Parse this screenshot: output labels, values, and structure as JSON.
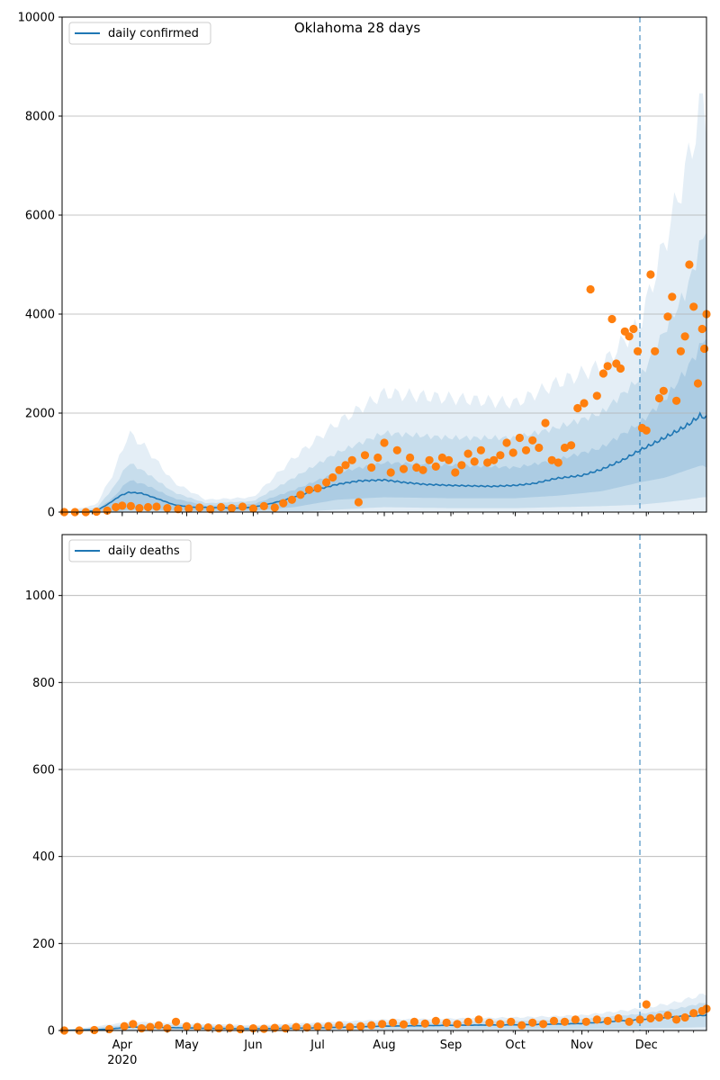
{
  "figure": {
    "title": "Oklahoma 28 days"
  },
  "colors": {
    "model": "#1f77b4",
    "observed": "#ff7f0e",
    "band": "#1f77b4",
    "grid": "#b0b0b0"
  },
  "chart_data": [
    {
      "type": "line",
      "panel": "top",
      "legend": [
        "daily confirmed"
      ],
      "legend_placement": "upper-left",
      "xlim": [
        "2020-03-04",
        "2020-12-29"
      ],
      "ylim": [
        0,
        10000
      ],
      "yticks": [
        0,
        2000,
        4000,
        6000,
        8000,
        10000
      ],
      "grid": "y",
      "forecast_start": "2020-11-28",
      "median": {
        "name": "daily confirmed",
        "x": [
          "2020-03-04",
          "2020-03-12",
          "2020-03-20",
          "2020-03-25",
          "2020-03-31",
          "2020-04-04",
          "2020-04-10",
          "2020-04-18",
          "2020-04-25",
          "2020-05-03",
          "2020-05-15",
          "2020-05-25",
          "2020-06-01",
          "2020-06-10",
          "2020-06-20",
          "2020-07-01",
          "2020-07-10",
          "2020-07-20",
          "2020-08-01",
          "2020-08-10",
          "2020-08-20",
          "2020-09-01",
          "2020-09-10",
          "2020-09-20",
          "2020-10-01",
          "2020-10-10",
          "2020-10-20",
          "2020-11-01",
          "2020-11-10",
          "2020-11-20",
          "2020-11-28",
          "2020-12-05",
          "2020-12-12",
          "2020-12-20",
          "2020-12-26",
          "2020-12-29"
        ],
        "y": [
          0,
          0,
          30,
          150,
          330,
          400,
          380,
          260,
          150,
          100,
          90,
          80,
          100,
          180,
          300,
          460,
          560,
          630,
          650,
          600,
          560,
          540,
          530,
          520,
          540,
          580,
          680,
          740,
          860,
          1050,
          1250,
          1400,
          1560,
          1750,
          1950,
          1900
        ]
      },
      "bands": [
        {
          "level": "outer",
          "x": [
            "2020-03-04",
            "2020-03-20",
            "2020-03-28",
            "2020-04-04",
            "2020-04-12",
            "2020-04-25",
            "2020-05-10",
            "2020-06-01",
            "2020-06-20",
            "2020-07-10",
            "2020-08-01",
            "2020-09-01",
            "2020-10-01",
            "2020-10-20",
            "2020-11-10",
            "2020-11-28",
            "2020-12-10",
            "2020-12-20",
            "2020-12-27",
            "2020-12-29"
          ],
          "lower": [
            0,
            0,
            0,
            0,
            0,
            0,
            0,
            0,
            0,
            0,
            0,
            0,
            0,
            0,
            0,
            0,
            0,
            0,
            0,
            0
          ],
          "upper": [
            0,
            150,
            800,
            1600,
            1300,
            600,
            250,
            300,
            1100,
            1800,
            2400,
            2300,
            2200,
            2600,
            2950,
            3800,
            5500,
            7000,
            8300,
            8000
          ]
        },
        {
          "level": "middle",
          "x": [
            "2020-03-04",
            "2020-03-20",
            "2020-03-28",
            "2020-04-04",
            "2020-04-12",
            "2020-04-25",
            "2020-05-10",
            "2020-06-01",
            "2020-06-20",
            "2020-07-10",
            "2020-08-01",
            "2020-09-01",
            "2020-10-01",
            "2020-10-20",
            "2020-11-10",
            "2020-11-28",
            "2020-12-10",
            "2020-12-20",
            "2020-12-27",
            "2020-12-29"
          ],
          "lower": [
            0,
            0,
            0,
            0,
            0,
            0,
            0,
            0,
            0,
            50,
            100,
            80,
            80,
            100,
            120,
            150,
            200,
            250,
            300,
            300
          ],
          "upper": [
            0,
            80,
            500,
            1000,
            800,
            400,
            180,
            220,
            700,
            1200,
            1600,
            1500,
            1500,
            1700,
            2000,
            2700,
            3700,
            4500,
            5500,
            5800
          ]
        },
        {
          "level": "inner",
          "x": [
            "2020-03-04",
            "2020-03-20",
            "2020-03-28",
            "2020-04-04",
            "2020-04-12",
            "2020-04-25",
            "2020-05-10",
            "2020-06-01",
            "2020-06-20",
            "2020-07-10",
            "2020-08-01",
            "2020-09-01",
            "2020-10-01",
            "2020-10-20",
            "2020-11-10",
            "2020-11-28",
            "2020-12-10",
            "2020-12-20",
            "2020-12-27",
            "2020-12-29"
          ],
          "lower": [
            0,
            0,
            0,
            50,
            60,
            30,
            20,
            30,
            100,
            250,
            300,
            280,
            280,
            330,
            420,
            600,
            700,
            850,
            950,
            900
          ],
          "upper": [
            0,
            40,
            300,
            650,
            550,
            280,
            130,
            160,
            450,
            800,
            1000,
            950,
            900,
            1050,
            1300,
            1800,
            2300,
            2900,
            3400,
            3600
          ]
        }
      ],
      "observed": {
        "x": [
          "2020-03-05",
          "2020-03-10",
          "2020-03-15",
          "2020-03-20",
          "2020-03-25",
          "2020-03-29",
          "2020-04-01",
          "2020-04-05",
          "2020-04-09",
          "2020-04-13",
          "2020-04-17",
          "2020-04-22",
          "2020-04-27",
          "2020-05-02",
          "2020-05-07",
          "2020-05-12",
          "2020-05-17",
          "2020-05-22",
          "2020-05-27",
          "2020-06-01",
          "2020-06-06",
          "2020-06-11",
          "2020-06-15",
          "2020-06-19",
          "2020-06-23",
          "2020-06-27",
          "2020-07-01",
          "2020-07-05",
          "2020-07-08",
          "2020-07-11",
          "2020-07-14",
          "2020-07-17",
          "2020-07-20",
          "2020-07-23",
          "2020-07-26",
          "2020-07-29",
          "2020-08-01",
          "2020-08-04",
          "2020-08-07",
          "2020-08-10",
          "2020-08-13",
          "2020-08-16",
          "2020-08-19",
          "2020-08-22",
          "2020-08-25",
          "2020-08-28",
          "2020-08-31",
          "2020-09-03",
          "2020-09-06",
          "2020-09-09",
          "2020-09-12",
          "2020-09-15",
          "2020-09-18",
          "2020-09-21",
          "2020-09-24",
          "2020-09-27",
          "2020-09-30",
          "2020-10-03",
          "2020-10-06",
          "2020-10-09",
          "2020-10-12",
          "2020-10-15",
          "2020-10-18",
          "2020-10-21",
          "2020-10-24",
          "2020-10-27",
          "2020-10-30",
          "2020-11-02",
          "2020-11-05",
          "2020-11-08",
          "2020-11-11",
          "2020-11-13",
          "2020-11-15",
          "2020-11-17",
          "2020-11-19",
          "2020-11-21",
          "2020-11-23",
          "2020-11-25",
          "2020-11-27",
          "2020-11-29",
          "2020-12-01",
          "2020-12-03",
          "2020-12-05",
          "2020-12-07",
          "2020-12-09",
          "2020-12-11",
          "2020-12-13",
          "2020-12-15",
          "2020-12-17",
          "2020-12-19",
          "2020-12-21",
          "2020-12-23",
          "2020-12-25",
          "2020-12-27",
          "2020-12-28",
          "2020-12-29"
        ],
        "y": [
          0,
          0,
          0,
          10,
          30,
          100,
          130,
          120,
          80,
          100,
          110,
          80,
          60,
          70,
          90,
          60,
          100,
          80,
          110,
          70,
          120,
          90,
          180,
          250,
          350,
          450,
          480,
          600,
          700,
          850,
          950,
          1050,
          200,
          1150,
          900,
          1100,
          1400,
          800,
          1250,
          870,
          1100,
          900,
          850,
          1050,
          920,
          1100,
          1050,
          800,
          950,
          1180,
          1020,
          1250,
          1000,
          1050,
          1150,
          1400,
          1200,
          1500,
          1250,
          1450,
          1300,
          1800,
          1050,
          1000,
          1300,
          1350,
          2100,
          2200,
          4500,
          2350,
          2800,
          2950,
          3900,
          3000,
          2900,
          3650,
          3550,
          3700,
          3250,
          1700,
          1650,
          4800,
          3250,
          2300,
          2450,
          3950,
          4350,
          2250,
          3250,
          3550,
          5000,
          4150,
          2600,
          3700,
          3300,
          4000
        ]
      }
    },
    {
      "type": "line",
      "panel": "bottom",
      "legend": [
        "daily deaths"
      ],
      "legend_placement": "upper-left",
      "xlim": [
        "2020-03-04",
        "2020-12-29"
      ],
      "ylim": [
        0,
        1140
      ],
      "yticks": [
        0,
        200,
        400,
        600,
        800,
        1000
      ],
      "grid": "y",
      "forecast_start": "2020-11-28",
      "xticks": [
        {
          "date": "2020-04-01",
          "label": "Apr",
          "sublabel": "2020"
        },
        {
          "date": "2020-05-01",
          "label": "May"
        },
        {
          "date": "2020-06-01",
          "label": "Jun"
        },
        {
          "date": "2020-07-01",
          "label": "Jul"
        },
        {
          "date": "2020-08-01",
          "label": "Aug"
        },
        {
          "date": "2020-09-01",
          "label": "Sep"
        },
        {
          "date": "2020-10-01",
          "label": "Oct"
        },
        {
          "date": "2020-11-01",
          "label": "Nov"
        },
        {
          "date": "2020-12-01",
          "label": "Dec"
        }
      ],
      "median": {
        "name": "daily deaths",
        "x": [
          "2020-03-04",
          "2020-03-25",
          "2020-04-05",
          "2020-04-20",
          "2020-05-10",
          "2020-06-01",
          "2020-07-01",
          "2020-08-01",
          "2020-09-01",
          "2020-10-01",
          "2020-11-01",
          "2020-11-28",
          "2020-12-15",
          "2020-12-29"
        ],
        "y": [
          0,
          3,
          8,
          7,
          5,
          4,
          6,
          10,
          12,
          13,
          16,
          25,
          32,
          35
        ]
      },
      "bands": [
        {
          "level": "outer",
          "x": [
            "2020-03-04",
            "2020-04-05",
            "2020-06-01",
            "2020-08-01",
            "2020-10-01",
            "2020-11-01",
            "2020-11-28",
            "2020-12-15",
            "2020-12-29"
          ],
          "lower": [
            0,
            0,
            0,
            0,
            0,
            0,
            0,
            0,
            0
          ],
          "upper": [
            0,
            20,
            12,
            25,
            30,
            35,
            50,
            65,
            85
          ]
        },
        {
          "level": "middle",
          "x": [
            "2020-03-04",
            "2020-04-05",
            "2020-06-01",
            "2020-08-01",
            "2020-10-01",
            "2020-11-01",
            "2020-11-28",
            "2020-12-15",
            "2020-12-29"
          ],
          "lower": [
            0,
            0,
            0,
            2,
            3,
            3,
            5,
            6,
            8
          ],
          "upper": [
            0,
            14,
            9,
            18,
            22,
            26,
            38,
            50,
            65
          ]
        }
      ],
      "observed": {
        "x": [
          "2020-03-05",
          "2020-03-12",
          "2020-03-19",
          "2020-03-26",
          "2020-04-02",
          "2020-04-06",
          "2020-04-10",
          "2020-04-14",
          "2020-04-18",
          "2020-04-22",
          "2020-04-26",
          "2020-05-01",
          "2020-05-06",
          "2020-05-11",
          "2020-05-16",
          "2020-05-21",
          "2020-05-26",
          "2020-06-01",
          "2020-06-06",
          "2020-06-11",
          "2020-06-16",
          "2020-06-21",
          "2020-06-26",
          "2020-07-01",
          "2020-07-06",
          "2020-07-11",
          "2020-07-16",
          "2020-07-21",
          "2020-07-26",
          "2020-07-31",
          "2020-08-05",
          "2020-08-10",
          "2020-08-15",
          "2020-08-20",
          "2020-08-25",
          "2020-08-30",
          "2020-09-04",
          "2020-09-09",
          "2020-09-14",
          "2020-09-19",
          "2020-09-24",
          "2020-09-29",
          "2020-10-04",
          "2020-10-09",
          "2020-10-14",
          "2020-10-19",
          "2020-10-24",
          "2020-10-29",
          "2020-11-03",
          "2020-11-08",
          "2020-11-13",
          "2020-11-18",
          "2020-11-23",
          "2020-11-28",
          "2020-12-01",
          "2020-12-03",
          "2020-12-07",
          "2020-12-11",
          "2020-12-15",
          "2020-12-19",
          "2020-12-23",
          "2020-12-27",
          "2020-12-29"
        ],
        "y": [
          0,
          0,
          1,
          3,
          10,
          15,
          5,
          8,
          12,
          5,
          20,
          10,
          8,
          7,
          5,
          6,
          3,
          5,
          4,
          6,
          5,
          8,
          7,
          9,
          10,
          12,
          8,
          10,
          12,
          15,
          18,
          14,
          20,
          16,
          22,
          18,
          15,
          20,
          25,
          18,
          15,
          20,
          12,
          18,
          15,
          22,
          20,
          25,
          20,
          25,
          22,
          28,
          20,
          25,
          60,
          28,
          30,
          35,
          25,
          30,
          40,
          45,
          50
        ]
      }
    }
  ]
}
